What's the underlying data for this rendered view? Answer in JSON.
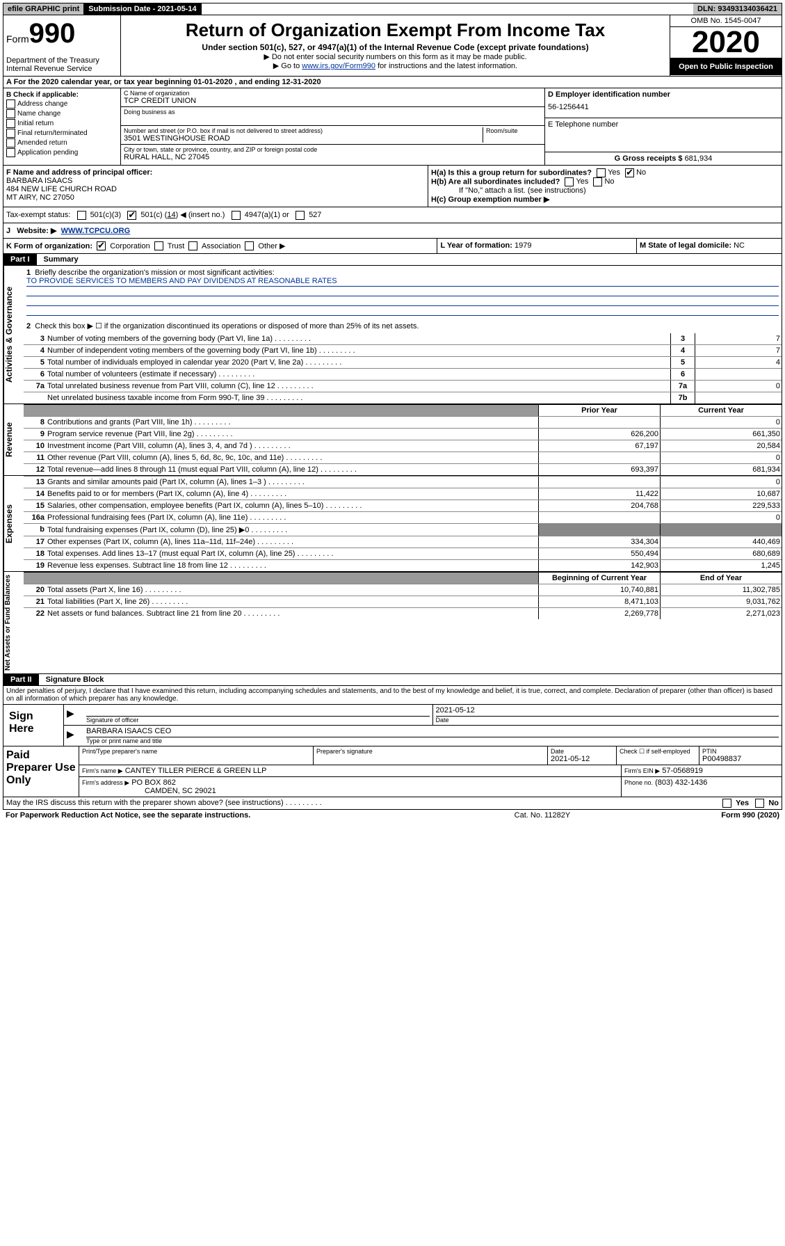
{
  "topbar": {
    "efile": "efile GRAPHIC print",
    "subdate": "Submission Date - 2021-05-14",
    "dln": "DLN: 93493134036421"
  },
  "header": {
    "form_prefix": "Form",
    "form_num": "990",
    "dept": "Department of the Treasury\nInternal Revenue Service",
    "title": "Return of Organization Exempt From Income Tax",
    "subtitle": "Under section 501(c), 527, or 4947(a)(1) of the Internal Revenue Code (except private foundations)",
    "note1": "▶ Do not enter social security numbers on this form as it may be made public.",
    "note2_pre": "▶ Go to ",
    "note2_link": "www.irs.gov/Form990",
    "note2_post": " for instructions and the latest information.",
    "omb": "OMB No. 1545-0047",
    "year": "2020",
    "open": "Open to Public Inspection"
  },
  "row_a": "A For the 2020 calendar year, or tax year beginning 01-01-2020    , and ending 12-31-2020",
  "section_b": {
    "label": "B Check if applicable:",
    "items": [
      "Address change",
      "Name change",
      "Initial return",
      "Final return/terminated",
      "Amended return",
      "Application pending"
    ]
  },
  "section_c": {
    "name_lbl": "C Name of organization",
    "name": "TCP CREDIT UNION",
    "dba_lbl": "Doing business as",
    "addr_lbl": "Number and street (or P.O. box if mail is not delivered to street address)",
    "suite_lbl": "Room/suite",
    "addr": "3501 WESTINGHOUSE ROAD",
    "city_lbl": "City or town, state or province, country, and ZIP or foreign postal code",
    "city": "RURAL HALL, NC  27045"
  },
  "section_d": {
    "lbl": "D Employer identification number",
    "val": "56-1256441"
  },
  "section_e": {
    "lbl": "E Telephone number",
    "val": ""
  },
  "section_g": {
    "lbl": "G Gross receipts $",
    "val": "681,934"
  },
  "section_f": {
    "lbl": "F  Name and address of principal officer:",
    "name": "BARBARA ISAACS",
    "addr1": "484 NEW LIFE CHURCH ROAD",
    "addr2": "MT AIRY, NC  27050"
  },
  "section_h": {
    "ha": "H(a)  Is this a group return for subordinates?",
    "hb": "H(b)  Are all subordinates included?",
    "hb_note": "If \"No,\" attach a list. (see instructions)",
    "hc": "H(c)  Group exemption number ▶",
    "yes": "Yes",
    "no": "No"
  },
  "tax_exempt": {
    "lbl": "Tax-exempt status:",
    "opt1": "501(c)(3)",
    "opt2a": "501(c) (",
    "opt2b": "14",
    "opt2c": ") ◀ (insert no.)",
    "opt3": "4947(a)(1) or",
    "opt4": "527"
  },
  "row_j": {
    "lbl": "J",
    "web": "Website: ▶",
    "url": "WWW.TCPCU.ORG"
  },
  "row_k": {
    "lbl": "K Form of organization:",
    "opts": [
      "Corporation",
      "Trust",
      "Association",
      "Other ▶"
    ]
  },
  "row_l": {
    "lbl": "L Year of formation:",
    "val": "1979"
  },
  "row_m": {
    "lbl": "M State of legal domicile:",
    "val": "NC"
  },
  "part1": {
    "label": "Part I",
    "title": "Summary"
  },
  "summary": {
    "q1": "Briefly describe the organization's mission or most significant activities:",
    "q1_ans": "TO PROVIDE SERVICES TO MEMBERS AND PAY DIVIDENDS AT REASONABLE RATES",
    "q2": "Check this box ▶ ☐  if the organization discontinued its operations or disposed of more than 25% of its net assets.",
    "lines_single": [
      {
        "n": "3",
        "t": "Number of voting members of the governing body (Part VI, line 1a)",
        "nc": "3",
        "v": "7"
      },
      {
        "n": "4",
        "t": "Number of independent voting members of the governing body (Part VI, line 1b)",
        "nc": "4",
        "v": "7"
      },
      {
        "n": "5",
        "t": "Total number of individuals employed in calendar year 2020 (Part V, line 2a)",
        "nc": "5",
        "v": "4"
      },
      {
        "n": "6",
        "t": "Total number of volunteers (estimate if necessary)",
        "nc": "6",
        "v": ""
      },
      {
        "n": "7a",
        "t": "Total unrelated business revenue from Part VIII, column (C), line 12",
        "nc": "7a",
        "v": "0"
      },
      {
        "n": "",
        "t": "Net unrelated business taxable income from Form 990-T, line 39",
        "nc": "7b",
        "v": ""
      }
    ],
    "hdr_prior": "Prior Year",
    "hdr_curr": "Current Year",
    "revenue": [
      {
        "n": "8",
        "t": "Contributions and grants (Part VIII, line 1h)",
        "v1": "",
        "v2": "0"
      },
      {
        "n": "9",
        "t": "Program service revenue (Part VIII, line 2g)",
        "v1": "626,200",
        "v2": "661,350"
      },
      {
        "n": "10",
        "t": "Investment income (Part VIII, column (A), lines 3, 4, and 7d )",
        "v1": "67,197",
        "v2": "20,584"
      },
      {
        "n": "11",
        "t": "Other revenue (Part VIII, column (A), lines 5, 6d, 8c, 9c, 10c, and 11e)",
        "v1": "",
        "v2": "0"
      },
      {
        "n": "12",
        "t": "Total revenue—add lines 8 through 11 (must equal Part VIII, column (A), line 12)",
        "v1": "693,397",
        "v2": "681,934"
      }
    ],
    "expenses": [
      {
        "n": "13",
        "t": "Grants and similar amounts paid (Part IX, column (A), lines 1–3 )",
        "v1": "",
        "v2": "0"
      },
      {
        "n": "14",
        "t": "Benefits paid to or for members (Part IX, column (A), line 4)",
        "v1": "11,422",
        "v2": "10,687"
      },
      {
        "n": "15",
        "t": "Salaries, other compensation, employee benefits (Part IX, column (A), lines 5–10)",
        "v1": "204,768",
        "v2": "229,533"
      },
      {
        "n": "16a",
        "t": "Professional fundraising fees (Part IX, column (A), line 11e)",
        "v1": "",
        "v2": "0"
      },
      {
        "n": "b",
        "t": "Total fundraising expenses (Part IX, column (D), line 25) ▶0",
        "v1": "",
        "v2": "",
        "shade": true
      },
      {
        "n": "17",
        "t": "Other expenses (Part IX, column (A), lines 11a–11d, 11f–24e)",
        "v1": "334,304",
        "v2": "440,469"
      },
      {
        "n": "18",
        "t": "Total expenses. Add lines 13–17 (must equal Part IX, column (A), line 25)",
        "v1": "550,494",
        "v2": "680,689"
      },
      {
        "n": "19",
        "t": "Revenue less expenses. Subtract line 18 from line 12",
        "v1": "142,903",
        "v2": "1,245"
      }
    ],
    "hdr_beg": "Beginning of Current Year",
    "hdr_end": "End of Year",
    "netassets": [
      {
        "n": "20",
        "t": "Total assets (Part X, line 16)",
        "v1": "10,740,881",
        "v2": "11,302,785"
      },
      {
        "n": "21",
        "t": "Total liabilities (Part X, line 26)",
        "v1": "8,471,103",
        "v2": "9,031,762"
      },
      {
        "n": "22",
        "t": "Net assets or fund balances. Subtract line 21 from line 20",
        "v1": "2,269,778",
        "v2": "2,271,023"
      }
    ]
  },
  "part2": {
    "label": "Part II",
    "title": "Signature Block"
  },
  "penalty": "Under penalties of perjury, I declare that I have examined this return, including accompanying schedules and statements, and to the best of my knowledge and belief, it is true, correct, and complete. Declaration of preparer (other than officer) is based on all information of which preparer has any knowledge.",
  "sign": {
    "here": "Sign Here",
    "sig_officer_lbl": "Signature of officer",
    "date": "2021-05-12",
    "date_lbl": "Date",
    "name": "BARBARA ISAACS CEO",
    "name_lbl": "Type or print name and title"
  },
  "paid": {
    "lbl": "Paid Preparer Use Only",
    "h_name": "Print/Type preparer's name",
    "h_sig": "Preparer's signature",
    "h_date": "Date",
    "date": "2021-05-12",
    "h_check": "Check ☐ if self-employed",
    "h_ptin": "PTIN",
    "ptin": "P00498837",
    "firm_name_lbl": "Firm's name      ▶",
    "firm_name": "CANTEY TILLER PIERCE & GREEN LLP",
    "firm_ein_lbl": "Firm's EIN ▶",
    "firm_ein": "57-0568919",
    "firm_addr_lbl": "Firm's address ▶",
    "firm_addr": "PO BOX 862",
    "firm_city": "CAMDEN, SC  29021",
    "phone_lbl": "Phone no.",
    "phone": "(803) 432-1436"
  },
  "discuss": "May the IRS discuss this return with the preparer shown above? (see instructions)",
  "footer": {
    "pra": "For Paperwork Reduction Act Notice, see the separate instructions.",
    "cat": "Cat. No. 11282Y",
    "form": "Form 990 (2020)"
  },
  "side_labels": {
    "ag": "Activities & Governance",
    "rev": "Revenue",
    "exp": "Expenses",
    "na": "Net Assets or Fund Balances"
  }
}
